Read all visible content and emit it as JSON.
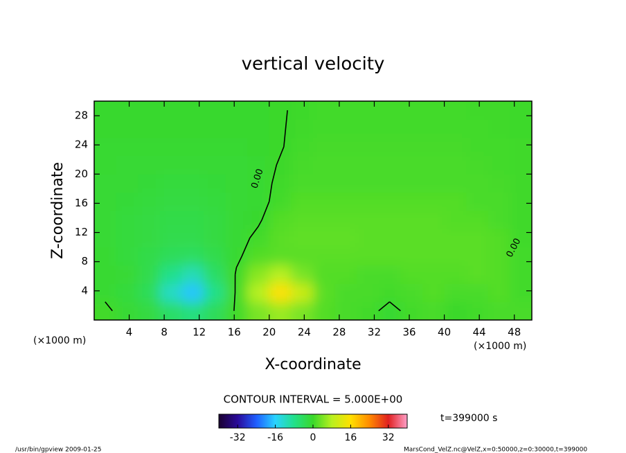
{
  "chart_data": {
    "type": "contour",
    "title": "vertical velocity",
    "xlabel": "X-coordinate",
    "ylabel": "Z-coordinate",
    "xunit": "(×1000 m)",
    "yunit": "(×1000 m)",
    "xlim": [
      0,
      50
    ],
    "ylim": [
      0,
      30
    ],
    "xticks": [
      4,
      8,
      12,
      16,
      20,
      24,
      28,
      32,
      36,
      40,
      44,
      48
    ],
    "yticks": [
      4,
      8,
      12,
      16,
      20,
      24,
      28
    ],
    "x": [
      1.25,
      3.75,
      6.25,
      8.75,
      11.25,
      13.75,
      16.25,
      18.75,
      21.25,
      23.75,
      26.25,
      28.75,
      31.25,
      33.75,
      36.25,
      38.75,
      41.25,
      43.75,
      46.25,
      48.75
    ],
    "y": [
      1.25,
      3.75,
      6.25,
      8.75,
      11.25,
      13.75,
      16.25,
      18.75,
      21.25,
      23.75,
      26.25,
      28.75
    ],
    "z": [
      [
        0.5,
        -1,
        -2,
        -5,
        -7,
        -4,
        0.5,
        4,
        6,
        4,
        1.5,
        1,
        0.5,
        -0.5,
        0.5,
        1,
        0,
        0.5,
        1,
        1
      ],
      [
        -0.5,
        -1.5,
        -4,
        -12,
        -17,
        -8,
        0.5,
        8,
        16,
        10,
        2,
        1,
        1,
        0.5,
        1,
        1.5,
        1,
        1,
        1.5,
        0.5
      ],
      [
        -0.5,
        -1,
        -3,
        -8,
        -11,
        -5,
        0.3,
        5,
        8,
        4,
        1.5,
        1.5,
        1,
        1,
        1.5,
        1.5,
        1.5,
        2,
        1.5,
        0.5
      ],
      [
        -0.5,
        -1.5,
        -2.5,
        -4,
        -4.5,
        -3,
        -0.5,
        1.5,
        2,
        2,
        2,
        2,
        2,
        2,
        2,
        2,
        2,
        2,
        1.5,
        0.5
      ],
      [
        -1,
        -1.5,
        -2,
        -3,
        -3,
        -2,
        -0.8,
        0.5,
        2,
        2.5,
        2.5,
        2.5,
        2,
        2,
        2,
        2,
        2,
        2,
        1.5,
        0.3
      ],
      [
        -1,
        -1.5,
        -2,
        -2.5,
        -2.5,
        -2,
        -1,
        -0.3,
        1.5,
        2,
        2,
        2,
        2,
        2,
        2,
        2,
        1.5,
        1.5,
        1,
        0.3
      ],
      [
        -1,
        -1.2,
        -1.5,
        -2,
        -2,
        -1.5,
        -1,
        -0.5,
        0.5,
        1.5,
        1.5,
        1.5,
        1.5,
        1.5,
        1.5,
        1.5,
        1.5,
        1,
        1,
        0.3
      ],
      [
        -0.8,
        -1,
        -1.2,
        -1.5,
        -1.5,
        -1.2,
        -1,
        -0.5,
        0.3,
        1,
        1,
        1,
        1,
        1,
        1,
        1,
        1,
        1,
        0.8,
        0.3
      ],
      [
        -0.5,
        -0.8,
        -1,
        -1,
        -1,
        -1,
        -0.8,
        -0.5,
        0.1,
        0.8,
        1,
        1,
        1,
        1,
        1,
        1,
        1,
        0.8,
        0.5,
        0.3
      ],
      [
        -0.5,
        -0.5,
        -0.6,
        -0.6,
        -0.6,
        -0.6,
        -0.5,
        -0.4,
        -0.1,
        0.5,
        0.8,
        0.8,
        0.8,
        0.8,
        0.8,
        0.8,
        0.8,
        0.6,
        0.5,
        0.3
      ],
      [
        -0.3,
        -0.4,
        -0.4,
        -0.4,
        -0.4,
        -0.4,
        -0.4,
        -0.3,
        -0.1,
        0.3,
        0.6,
        0.6,
        0.6,
        0.6,
        0.6,
        0.6,
        0.6,
        0.5,
        0.4,
        0.2
      ],
      [
        -0.3,
        -0.3,
        -0.3,
        -0.3,
        -0.3,
        -0.3,
        -0.3,
        -0.3,
        -0.1,
        0.2,
        0.5,
        0.5,
        0.5,
        0.5,
        0.5,
        0.5,
        0.5,
        0.4,
        0.3,
        0.2
      ]
    ],
    "clim": [
      -40,
      40
    ],
    "cticks": [
      -32,
      -16,
      0,
      16,
      32
    ],
    "colormap": [
      "#1a0030",
      "#2a0a9a",
      "#1f5fff",
      "#29d3ff",
      "#22e08a",
      "#3ad82a",
      "#b8f020",
      "#ffe000",
      "#ff8a00",
      "#e02020",
      "#ff9fc8"
    ],
    "contour_labels": [
      "0.00",
      "0.00"
    ],
    "contour_interval": "CONTOUR INTERVAL = 5.000E+00",
    "time_label": "t=399000 s",
    "footer_left": "/usr/bin/gpview  2009-01-25",
    "footer_right": "MarsCond_VelZ.nc@VelZ,x=0:50000,z=0:30000,t=399000"
  }
}
